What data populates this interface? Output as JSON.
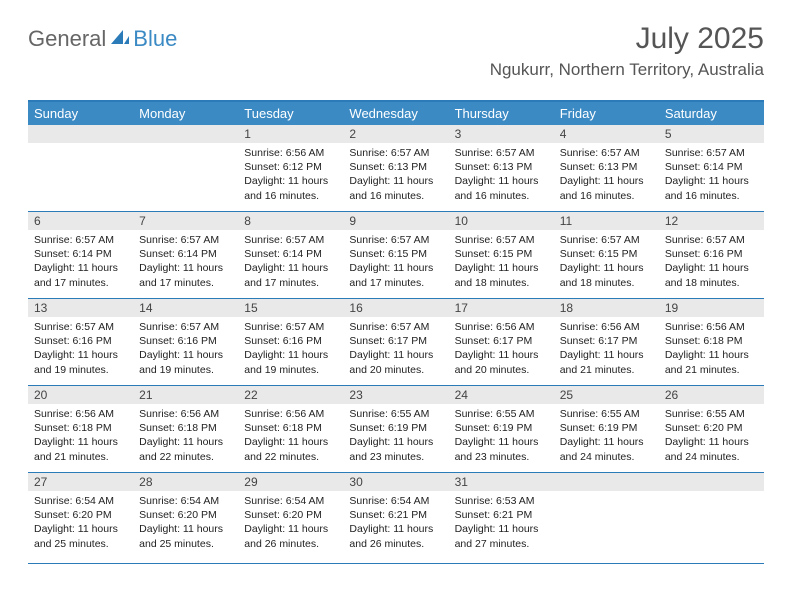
{
  "brand": {
    "word1": "General",
    "word2": "Blue",
    "sail_color": "#2b7bb9"
  },
  "header": {
    "title": "July 2025",
    "location": "Ngukurr, Northern Territory, Australia"
  },
  "colors": {
    "header_bg": "#3b8ac4",
    "header_border": "#2b7bb9",
    "daynum_bg": "#e9e9e9",
    "text": "#333333"
  },
  "day_names": [
    "Sunday",
    "Monday",
    "Tuesday",
    "Wednesday",
    "Thursday",
    "Friday",
    "Saturday"
  ],
  "weeks": [
    [
      null,
      null,
      {
        "n": "1",
        "sunrise": "6:56 AM",
        "sunset": "6:12 PM",
        "daylight": "11 hours and 16 minutes."
      },
      {
        "n": "2",
        "sunrise": "6:57 AM",
        "sunset": "6:13 PM",
        "daylight": "11 hours and 16 minutes."
      },
      {
        "n": "3",
        "sunrise": "6:57 AM",
        "sunset": "6:13 PM",
        "daylight": "11 hours and 16 minutes."
      },
      {
        "n": "4",
        "sunrise": "6:57 AM",
        "sunset": "6:13 PM",
        "daylight": "11 hours and 16 minutes."
      },
      {
        "n": "5",
        "sunrise": "6:57 AM",
        "sunset": "6:14 PM",
        "daylight": "11 hours and 16 minutes."
      }
    ],
    [
      {
        "n": "6",
        "sunrise": "6:57 AM",
        "sunset": "6:14 PM",
        "daylight": "11 hours and 17 minutes."
      },
      {
        "n": "7",
        "sunrise": "6:57 AM",
        "sunset": "6:14 PM",
        "daylight": "11 hours and 17 minutes."
      },
      {
        "n": "8",
        "sunrise": "6:57 AM",
        "sunset": "6:14 PM",
        "daylight": "11 hours and 17 minutes."
      },
      {
        "n": "9",
        "sunrise": "6:57 AM",
        "sunset": "6:15 PM",
        "daylight": "11 hours and 17 minutes."
      },
      {
        "n": "10",
        "sunrise": "6:57 AM",
        "sunset": "6:15 PM",
        "daylight": "11 hours and 18 minutes."
      },
      {
        "n": "11",
        "sunrise": "6:57 AM",
        "sunset": "6:15 PM",
        "daylight": "11 hours and 18 minutes."
      },
      {
        "n": "12",
        "sunrise": "6:57 AM",
        "sunset": "6:16 PM",
        "daylight": "11 hours and 18 minutes."
      }
    ],
    [
      {
        "n": "13",
        "sunrise": "6:57 AM",
        "sunset": "6:16 PM",
        "daylight": "11 hours and 19 minutes."
      },
      {
        "n": "14",
        "sunrise": "6:57 AM",
        "sunset": "6:16 PM",
        "daylight": "11 hours and 19 minutes."
      },
      {
        "n": "15",
        "sunrise": "6:57 AM",
        "sunset": "6:16 PM",
        "daylight": "11 hours and 19 minutes."
      },
      {
        "n": "16",
        "sunrise": "6:57 AM",
        "sunset": "6:17 PM",
        "daylight": "11 hours and 20 minutes."
      },
      {
        "n": "17",
        "sunrise": "6:56 AM",
        "sunset": "6:17 PM",
        "daylight": "11 hours and 20 minutes."
      },
      {
        "n": "18",
        "sunrise": "6:56 AM",
        "sunset": "6:17 PM",
        "daylight": "11 hours and 21 minutes."
      },
      {
        "n": "19",
        "sunrise": "6:56 AM",
        "sunset": "6:18 PM",
        "daylight": "11 hours and 21 minutes."
      }
    ],
    [
      {
        "n": "20",
        "sunrise": "6:56 AM",
        "sunset": "6:18 PM",
        "daylight": "11 hours and 21 minutes."
      },
      {
        "n": "21",
        "sunrise": "6:56 AM",
        "sunset": "6:18 PM",
        "daylight": "11 hours and 22 minutes."
      },
      {
        "n": "22",
        "sunrise": "6:56 AM",
        "sunset": "6:18 PM",
        "daylight": "11 hours and 22 minutes."
      },
      {
        "n": "23",
        "sunrise": "6:55 AM",
        "sunset": "6:19 PM",
        "daylight": "11 hours and 23 minutes."
      },
      {
        "n": "24",
        "sunrise": "6:55 AM",
        "sunset": "6:19 PM",
        "daylight": "11 hours and 23 minutes."
      },
      {
        "n": "25",
        "sunrise": "6:55 AM",
        "sunset": "6:19 PM",
        "daylight": "11 hours and 24 minutes."
      },
      {
        "n": "26",
        "sunrise": "6:55 AM",
        "sunset": "6:20 PM",
        "daylight": "11 hours and 24 minutes."
      }
    ],
    [
      {
        "n": "27",
        "sunrise": "6:54 AM",
        "sunset": "6:20 PM",
        "daylight": "11 hours and 25 minutes."
      },
      {
        "n": "28",
        "sunrise": "6:54 AM",
        "sunset": "6:20 PM",
        "daylight": "11 hours and 25 minutes."
      },
      {
        "n": "29",
        "sunrise": "6:54 AM",
        "sunset": "6:20 PM",
        "daylight": "11 hours and 26 minutes."
      },
      {
        "n": "30",
        "sunrise": "6:54 AM",
        "sunset": "6:21 PM",
        "daylight": "11 hours and 26 minutes."
      },
      {
        "n": "31",
        "sunrise": "6:53 AM",
        "sunset": "6:21 PM",
        "daylight": "11 hours and 27 minutes."
      },
      null,
      null
    ]
  ],
  "labels": {
    "sunrise": "Sunrise: ",
    "sunset": "Sunset: ",
    "daylight": "Daylight: "
  }
}
